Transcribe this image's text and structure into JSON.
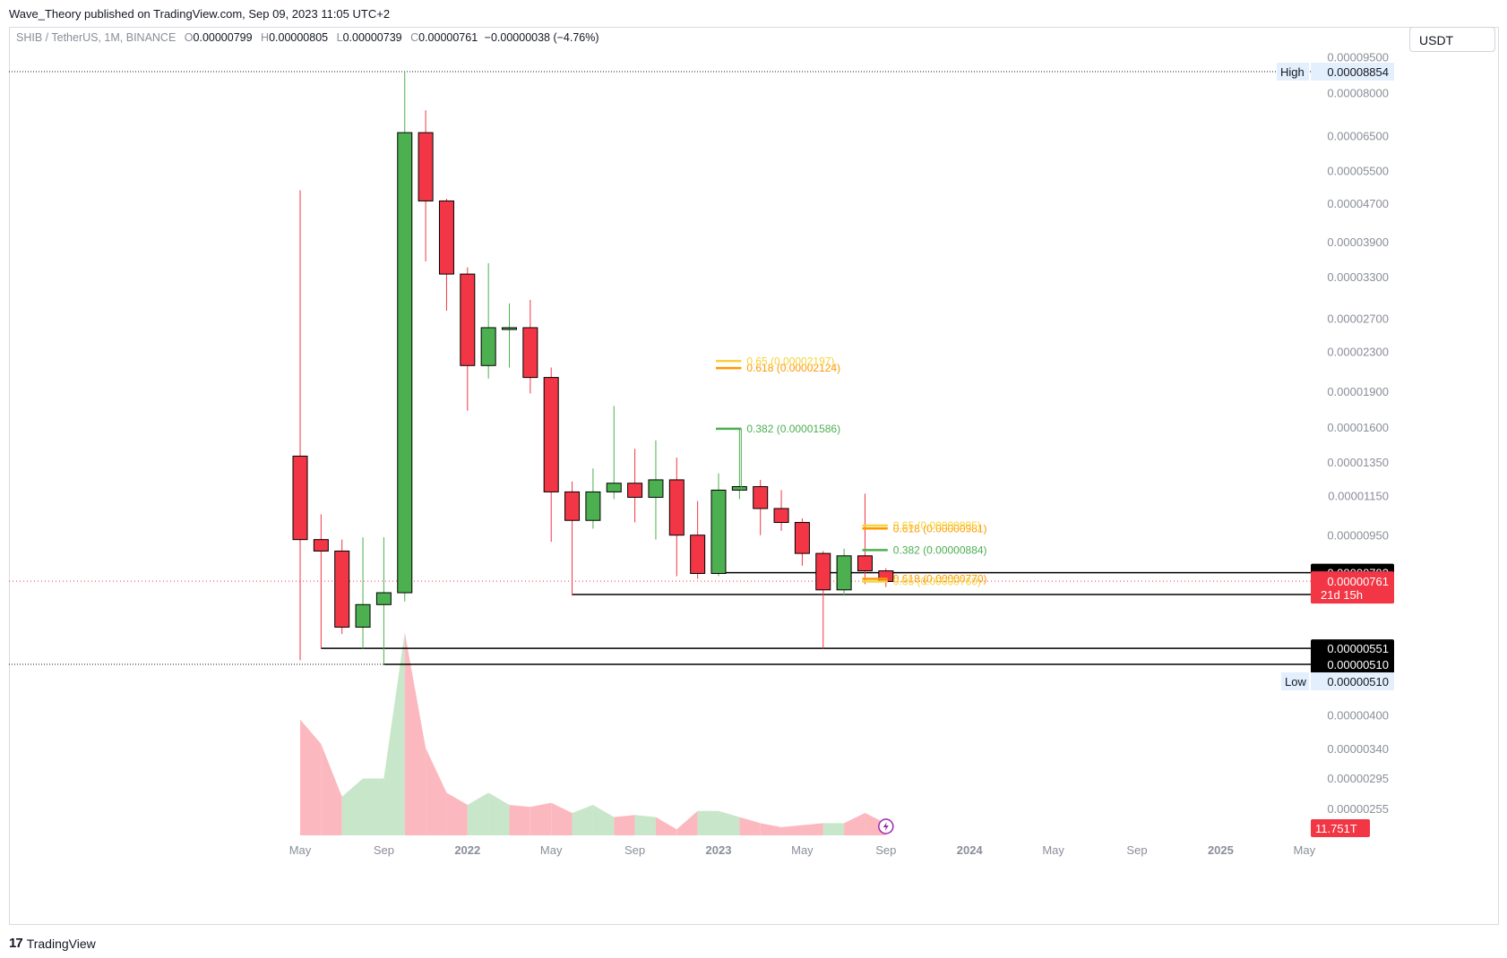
{
  "publisher_line": "Wave_Theory published on TradingView.com, Sep 09, 2023 11:05 UTC+2",
  "symbol": {
    "name": "SHIB / TetherUS, 1M, BINANCE",
    "open_label": "O",
    "open": "0.00000799",
    "high_label": "H",
    "high": "0.00000805",
    "low_label": "L",
    "low": "0.00000739",
    "close_label": "C",
    "close": "0.00000761",
    "change": "−0.00000038 (−4.76%)"
  },
  "currency_button": "USDT",
  "footer": {
    "logo_mark": "17",
    "logo_text": "TradingView",
    "icon": "tradingview-logo-icon"
  },
  "colors": {
    "up": "#4caf50",
    "down": "#f23645",
    "up_volume": "#c8e6c9",
    "down_volume": "#fbb9bf",
    "fib_green": "#4caf50",
    "fib_orange": "#ff9800",
    "fib_yellow": "#f6d33d",
    "axis_text": "#8a8e99"
  },
  "chart_data": {
    "type": "candlestick",
    "interval": "1M",
    "scale": "log",
    "x_ticks": [
      "May",
      "Sep",
      "2022",
      "May",
      "Sep",
      "2023",
      "May",
      "Sep",
      "2024",
      "May",
      "Sep",
      "2025",
      "May"
    ],
    "y_ticks": [
      "0.00009500",
      "0.00008000",
      "0.00006500",
      "0.00005500",
      "0.00004700",
      "0.00003900",
      "0.00003300",
      "0.00002700",
      "0.00002300",
      "0.00001900",
      "0.00001600",
      "0.00001350",
      "0.00001150",
      "0.00000950",
      "0.00000400",
      "0.00000340",
      "0.00000295",
      "0.00000255"
    ],
    "candles": [
      {
        "month": "2021-05",
        "open": 1.39e-05,
        "high": 5e-05,
        "low": 5.2e-06,
        "close": 9.3e-06
      },
      {
        "month": "2021-06",
        "open": 9.3e-06,
        "high": 1.05e-05,
        "low": 5.5e-06,
        "close": 8.8e-06
      },
      {
        "month": "2021-07",
        "open": 8.8e-06,
        "high": 9.3e-06,
        "low": 5.9e-06,
        "close": 6.1e-06
      },
      {
        "month": "2021-08",
        "open": 6.1e-06,
        "high": 9.4e-06,
        "low": 5.5e-06,
        "close": 6.8e-06
      },
      {
        "month": "2021-09",
        "open": 6.8e-06,
        "high": 9.4e-06,
        "low": 5.1e-06,
        "close": 7.2e-06
      },
      {
        "month": "2021-10",
        "open": 7.2e-06,
        "high": 8.85e-05,
        "low": 6.9e-06,
        "close": 6.6e-05
      },
      {
        "month": "2021-11",
        "open": 6.6e-05,
        "high": 7.35e-05,
        "low": 3.55e-05,
        "close": 4.75e-05
      },
      {
        "month": "2021-12",
        "open": 4.75e-05,
        "high": 4.8e-05,
        "low": 2.8e-05,
        "close": 3.34e-05
      },
      {
        "month": "2022-01",
        "open": 3.34e-05,
        "high": 3.45e-05,
        "low": 1.73e-05,
        "close": 2.15e-05
      },
      {
        "month": "2022-02",
        "open": 2.15e-05,
        "high": 3.52e-05,
        "low": 2.02e-05,
        "close": 2.58e-05
      },
      {
        "month": "2022-03",
        "open": 2.58e-05,
        "high": 2.9e-05,
        "low": 2.13e-05,
        "close": 2.58e-05
      },
      {
        "month": "2022-04",
        "open": 2.58e-05,
        "high": 2.95e-05,
        "low": 1.88e-05,
        "close": 2.03e-05
      },
      {
        "month": "2022-05",
        "open": 2.03e-05,
        "high": 2.13e-05,
        "low": 9.2e-06,
        "close": 1.17e-05
      },
      {
        "month": "2022-06",
        "open": 1.17e-05,
        "high": 1.23e-05,
        "low": 7.1e-06,
        "close": 1.02e-05
      },
      {
        "month": "2022-07",
        "open": 1.02e-05,
        "high": 1.31e-05,
        "low": 9.8e-06,
        "close": 1.17e-05
      },
      {
        "month": "2022-08",
        "open": 1.17e-05,
        "high": 1.77e-05,
        "low": 1.13e-05,
        "close": 1.22e-05
      },
      {
        "month": "2022-09",
        "open": 1.22e-05,
        "high": 1.44e-05,
        "low": 1.01e-05,
        "close": 1.14e-05
      },
      {
        "month": "2022-10",
        "open": 1.14e-05,
        "high": 1.5e-05,
        "low": 9.3e-06,
        "close": 1.24e-05
      },
      {
        "month": "2022-11",
        "open": 1.24e-05,
        "high": 1.38e-05,
        "low": 7.8e-06,
        "close": 9.5e-06
      },
      {
        "month": "2022-12",
        "open": 9.5e-06,
        "high": 1.12e-05,
        "low": 7.7e-06,
        "close": 7.9e-06
      },
      {
        "month": "2023-01",
        "open": 7.9e-06,
        "high": 1.28e-05,
        "low": 7.8e-06,
        "close": 1.18e-05
      },
      {
        "month": "2023-02",
        "open": 1.18e-05,
        "high": 1.59e-05,
        "low": 1.13e-05,
        "close": 1.2e-05
      },
      {
        "month": "2023-03",
        "open": 1.2e-05,
        "high": 1.24e-05,
        "low": 9.5e-06,
        "close": 1.08e-05
      },
      {
        "month": "2023-04",
        "open": 1.08e-05,
        "high": 1.18e-05,
        "low": 9.7e-06,
        "close": 1.01e-05
      },
      {
        "month": "2023-05",
        "open": 1.01e-05,
        "high": 1.03e-05,
        "low": 8.2e-06,
        "close": 8.7e-06
      },
      {
        "month": "2023-06",
        "open": 8.7e-06,
        "high": 8.8e-06,
        "low": 5.5e-06,
        "close": 7.3e-06
      },
      {
        "month": "2023-07",
        "open": 7.3e-06,
        "high": 8.9e-06,
        "low": 7.1e-06,
        "close": 8.6e-06
      },
      {
        "month": "2023-08",
        "open": 8.6e-06,
        "high": 1.16e-05,
        "low": 7.5e-06,
        "close": 8e-06
      },
      {
        "month": "2023-09",
        "open": 8e-06,
        "high": 8.1e-06,
        "low": 7.4e-06,
        "close": 7.6e-06
      }
    ],
    "volume": [
      0.57,
      0.45,
      0.19,
      0.28,
      0.28,
      1.0,
      0.43,
      0.21,
      0.15,
      0.21,
      0.15,
      0.14,
      0.16,
      0.11,
      0.15,
      0.09,
      0.1,
      0.09,
      0.03,
      0.12,
      0.12,
      0.09,
      0.06,
      0.04,
      0.05,
      0.06,
      0.06,
      0.11,
      0.06
    ],
    "horizontal_levels": [
      {
        "label": "0.00000793",
        "value": 7.93e-06,
        "from_month": "2023-01"
      },
      {
        "label": "0.00000714",
        "value": 7.14e-06,
        "from_month": "2022-06"
      },
      {
        "label": "0.00000551",
        "value": 5.51e-06,
        "from_month": "2021-06"
      },
      {
        "label": "0.00000510",
        "value": 5.1e-06,
        "from_month": "2021-09"
      }
    ],
    "high_marker": {
      "label": "High",
      "value_text": "0.00008854",
      "value": 8.854e-05
    },
    "low_marker": {
      "label": "Low",
      "value_text": "0.00000510",
      "value": 5.1e-06
    },
    "current_price": {
      "value_text": "0.00000761",
      "countdown": "21d 15h",
      "value": 7.61e-06
    },
    "volume_label": "11.751T",
    "fib_groups": [
      {
        "from_month": "2023-01",
        "to_month": "2023-02",
        "levels": [
          {
            "text": "0.382 (0.00001586)",
            "value": 1.586e-05,
            "color": "green"
          },
          {
            "text": "0.618 (0.00002124)",
            "value": 2.124e-05,
            "color": "orange"
          },
          {
            "text": "0.65 (0.00002197)",
            "value": 2.197e-05,
            "color": "yellow"
          }
        ]
      },
      {
        "from_month": "2023-08",
        "to_month": "2023-09",
        "levels": [
          {
            "text": "0.382 (0.00000884)",
            "value": 8.84e-06,
            "color": "green"
          },
          {
            "text": "0.618 (0.00000981)",
            "value": 9.81e-06,
            "color": "orange"
          },
          {
            "text": "0.65 (0.00000995)",
            "value": 9.95e-06,
            "color": "yellow"
          },
          {
            "text": "0.618 (0.00000770)",
            "value": 7.7e-06,
            "color": "orange"
          },
          {
            "text": "0.65 (0.00000760)",
            "value": 7.6e-06,
            "color": "yellow"
          }
        ]
      }
    ]
  }
}
